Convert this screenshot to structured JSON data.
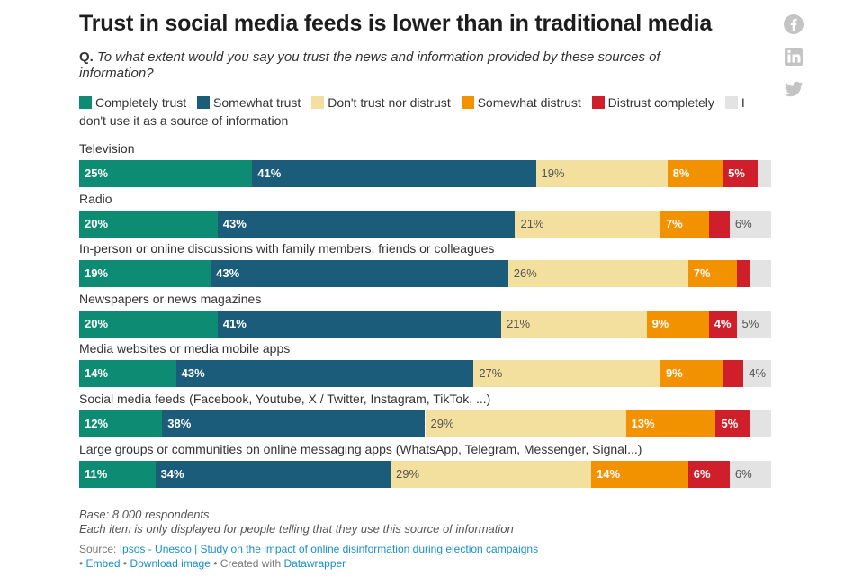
{
  "title": "Trust in social media feeds is lower than in traditional media",
  "question": {
    "prefix": "Q.",
    "text": "To what extent would you say you trust the news and information provided by these sources of information?"
  },
  "chart_data": {
    "type": "bar",
    "orientation": "horizontal",
    "stacked": true,
    "title": "Trust in social media feeds is lower than in traditional media",
    "legend_position": "top",
    "categories": [
      "Television",
      "Radio",
      "In-person or online discussions with family members, friends or colleagues",
      "Newspapers or news magazines",
      "Media websites or media mobile apps",
      "Social media feeds (Facebook, Youtube, X / Twitter, Instagram, TikTok, ...)",
      "Large groups or communities on online messaging apps (WhatsApp, Telegram, Messenger, Signal...)"
    ],
    "series": [
      {
        "name": "Completely trust",
        "color": "#0e8c73",
        "label_color": "#ffffff",
        "values": [
          25,
          20,
          19,
          20,
          14,
          12,
          11
        ],
        "shown_labels": [
          true,
          true,
          true,
          true,
          true,
          true,
          true
        ]
      },
      {
        "name": "Somewhat trust",
        "color": "#1b5c7a",
        "label_color": "#ffffff",
        "values": [
          41,
          43,
          43,
          41,
          43,
          38,
          34
        ],
        "shown_labels": [
          true,
          true,
          true,
          true,
          true,
          true,
          true
        ]
      },
      {
        "name": "Don't trust nor distrust",
        "color": "#f4e09e",
        "label_color": "#555555",
        "values": [
          19,
          21,
          26,
          21,
          27,
          29,
          29
        ],
        "shown_labels": [
          true,
          true,
          true,
          true,
          true,
          true,
          true
        ]
      },
      {
        "name": "Somewhat distrust",
        "color": "#f39200",
        "label_color": "#ffffff",
        "values": [
          8,
          7,
          7,
          9,
          9,
          13,
          14
        ],
        "shown_labels": [
          true,
          true,
          true,
          true,
          true,
          true,
          true
        ]
      },
      {
        "name": "Distrust completely",
        "color": "#cf1f2b",
        "label_color": "#ffffff",
        "values": [
          5,
          3,
          2,
          4,
          3,
          5,
          6
        ],
        "shown_labels": [
          true,
          false,
          false,
          true,
          false,
          true,
          true
        ]
      },
      {
        "name": "I don't use it as a source of information",
        "color": "#e3e3e3",
        "label_color": "#555555",
        "values": [
          2,
          6,
          3,
          5,
          4,
          3,
          6
        ],
        "shown_labels": [
          false,
          true,
          false,
          true,
          true,
          false,
          true
        ]
      }
    ]
  },
  "notes": {
    "base": "Base: 8 000 respondents",
    "caveat": "Each item is only displayed for people telling that they use this source of information"
  },
  "source": {
    "label": "Source: ",
    "link_text": "Ipsos - Unesco | Study on the impact of online disinformation during election campaigns",
    "embed": "Embed",
    "download": "Download image",
    "created_with": "Created with",
    "tool": "Datawrapper",
    "bullet": "•"
  },
  "social": [
    "facebook-icon",
    "linkedin-icon",
    "twitter-icon"
  ]
}
